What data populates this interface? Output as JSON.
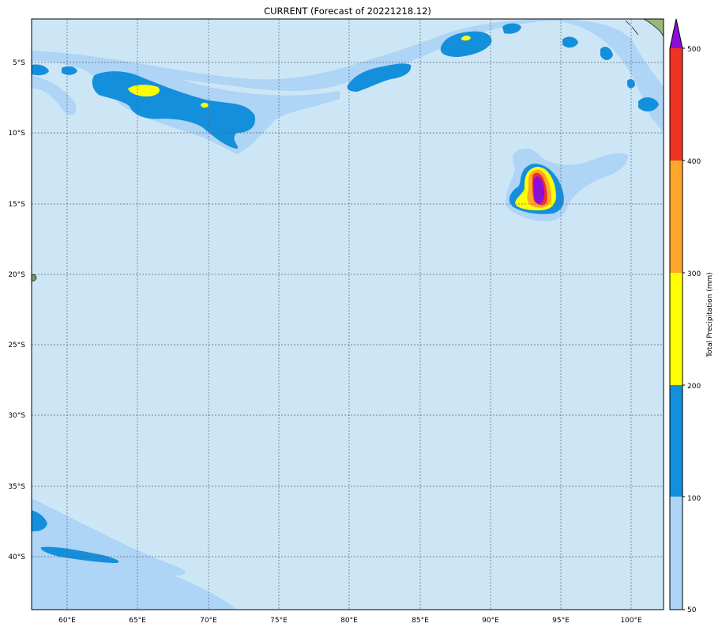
{
  "title": "CURRENT (Forecast of 20221218.12)",
  "map": {
    "lon_range": [
      57.5,
      102.3
    ],
    "lat_range": [
      -43.8,
      -2.0
    ],
    "ocean_color": "#cde6f6",
    "grid": true,
    "lon_ticks": [
      "60°E",
      "65°E",
      "70°E",
      "75°E",
      "80°E",
      "85°E",
      "90°E",
      "95°E",
      "100°E"
    ],
    "lat_ticks": [
      "5°S",
      "10°S",
      "15°S",
      "20°S",
      "25°S",
      "30°S",
      "35°S",
      "40°S"
    ]
  },
  "colorbar": {
    "label": "Total Precipitation (mm)",
    "ticks": [
      "50",
      "100",
      "200",
      "300",
      "400",
      "500"
    ],
    "colors": [
      "#aed4f6",
      "#148fdc",
      "#ffff00",
      "#ffa72a",
      "#ef3221",
      "#8d0ed6"
    ],
    "extend": "max"
  }
}
